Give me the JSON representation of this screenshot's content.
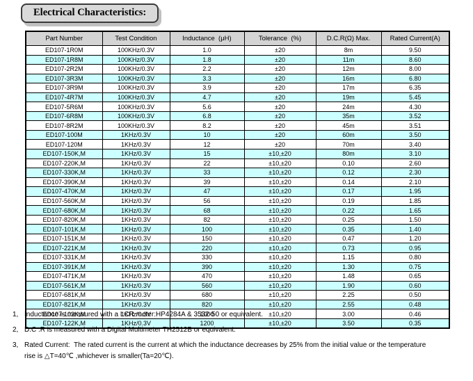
{
  "title": "Electrical Characteristics:",
  "table": {
    "headers": [
      "Part Number",
      "Test Condition",
      "Inductance  (μH)",
      "Tolerance  (%)",
      "D.C.R(Ω) Max.",
      "Rated Current(A)"
    ],
    "rows": [
      [
        "ED107-1R0M",
        "100KHz/0.3V",
        "1.0",
        "±20",
        "8m",
        "9.50"
      ],
      [
        "ED107-1R8M",
        "100KHz/0.3V",
        "1.8",
        "±20",
        "11m",
        "8.60"
      ],
      [
        "ED107-2R2M",
        "100KHz/0.3V",
        "2.2",
        "±20",
        "12m",
        "8.00"
      ],
      [
        "ED107-3R3M",
        "100KHz/0.3V",
        "3.3",
        "±20",
        "16m",
        "6.80"
      ],
      [
        "ED107-3R9M",
        "100KHz/0.3V",
        "3.9",
        "±20",
        "17m",
        "6.35"
      ],
      [
        "ED107-4R7M",
        "100KHz/0.3V",
        "4.7",
        "±20",
        "19m",
        "5.45"
      ],
      [
        "ED107-5R6M",
        "100KHz/0.3V",
        "5.6",
        "±20",
        "24m",
        "4.30"
      ],
      [
        "ED107-6R8M",
        "100KHz/0.3V",
        "6.8",
        "±20",
        "35m",
        "3.52"
      ],
      [
        "ED107-8R2M",
        "100KHz/0.3V",
        "8.2",
        "±20",
        "45m",
        "3.51"
      ],
      [
        "ED107-100M",
        "1KHz/0.3V",
        "10",
        "±20",
        "60m",
        "3.50"
      ],
      [
        "ED107-120M",
        "1KHz/0.3V",
        "12",
        "±20",
        "70m",
        "3.40"
      ],
      [
        "ED107-150K,M",
        "1KHz/0.3V",
        "15",
        "±10,±20",
        "80m",
        "3.10"
      ],
      [
        "ED107-220K,M",
        "1KHz/0.3V",
        "22",
        "±10,±20",
        "0.10",
        "2.60"
      ],
      [
        "ED107-330K,M",
        "1KHz/0.3V",
        "33",
        "±10,±20",
        "0.12",
        "2.30"
      ],
      [
        "ED107-390K,M",
        "1KHz/0.3V",
        "39",
        "±10,±20",
        "0.14",
        "2.10"
      ],
      [
        "ED107-470K,M",
        "1KHz/0.3V",
        "47",
        "±10,±20",
        "0.17",
        "1.95"
      ],
      [
        "ED107-560K,M",
        "1KHz/0.3V",
        "56",
        "±10,±20",
        "0.19",
        "1.85"
      ],
      [
        "ED107-680K,M",
        "1KHz/0.3V",
        "68",
        "±10,±20",
        "0.22",
        "1.65"
      ],
      [
        "ED107-820K,M",
        "1KHz/0.3V",
        "82",
        "±10,±20",
        "0.25",
        "1.50"
      ],
      [
        "ED107-101K,M",
        "1KHz/0.3V",
        "100",
        "±10,±20",
        "0.35",
        "1.40"
      ],
      [
        "ED107-151K,M",
        "1KHz/0.3V",
        "150",
        "±10,±20",
        "0.47",
        "1.20"
      ],
      [
        "ED107-221K,M",
        "1KHz/0.3V",
        "220",
        "±10,±20",
        "0.73",
        "0.95"
      ],
      [
        "ED107-331K,M",
        "1KHz/0.3V",
        "330",
        "±10,±20",
        "1.15",
        "0.80"
      ],
      [
        "ED107-391K,M",
        "1KHz/0.3V",
        "390",
        "±10,±20",
        "1.30",
        "0.75"
      ],
      [
        "ED107-471K,M",
        "1KHz/0.3V",
        "470",
        "±10,±20",
        "1.48",
        "0.65"
      ],
      [
        "ED107-561K,M",
        "1KHz/0.3V",
        "560",
        "±10,±20",
        "1.90",
        "0.60"
      ],
      [
        "ED107-681K,M",
        "1KHz/0.3V",
        "680",
        "±10,±20",
        "2.25",
        "0.50"
      ],
      [
        "ED107-821K,M",
        "1KHz/0.3V",
        "820",
        "±10,±20",
        "2.55",
        "0.48"
      ],
      [
        "ED107-102K,M",
        "1KHz/0.3V",
        "1000",
        "±10,±20",
        "3.00",
        "0.46"
      ],
      [
        "ED107-122K,M",
        "1KHz/0.3V",
        "1200",
        "±10,±20",
        "3.50",
        "0.35"
      ]
    ]
  },
  "notes": [
    {
      "num": "1,",
      "lines": [
        "Inductance is measured with a LCR meter:HP4284A & 3532-50 or equivalent."
      ]
    },
    {
      "num": "2,",
      "lines": [
        "D.C .R is measured with a Digital Multimeter TH2512B or equivalent."
      ]
    },
    {
      "num": "3,",
      "lines": [
        "Rated Current:  The rated current is the current at which the inductance decreases by 25% from the initial value or the temperature",
        "rise is △T=40℃ ,whichever is smaller(Ta=20℃)."
      ]
    }
  ],
  "colors": {
    "header_bg": "#d4d4d4",
    "row_bg": "#ffffff",
    "row_alt_bg": "#ccffff",
    "border": "#000000",
    "title_bg": "#d9d9d9",
    "title_border": "#3a3a3a",
    "title_shadow": "#c0c0c0"
  }
}
